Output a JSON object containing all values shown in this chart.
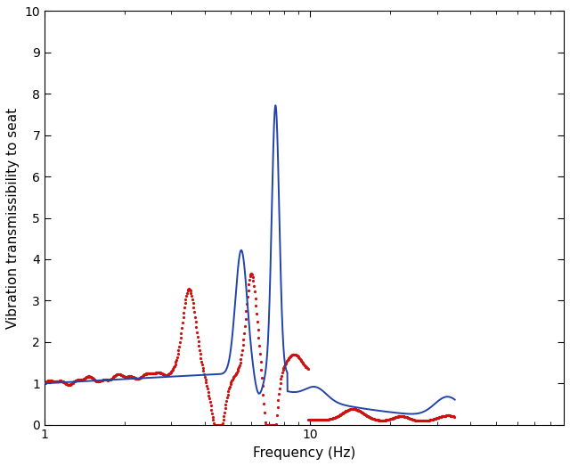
{
  "title": "",
  "xlabel": "Frequency (Hz)",
  "ylabel": "Vibration transmissibility to seat",
  "xlim": [
    1,
    35
  ],
  "ylim": [
    0,
    10
  ],
  "yticks": [
    0,
    1,
    2,
    3,
    4,
    5,
    6,
    7,
    8,
    9,
    10
  ],
  "blue_color": "#2244aa",
  "red_color": "#cc1111",
  "background_color": "#ffffff",
  "figsize": [
    6.4,
    5.23
  ],
  "dpi": 100
}
